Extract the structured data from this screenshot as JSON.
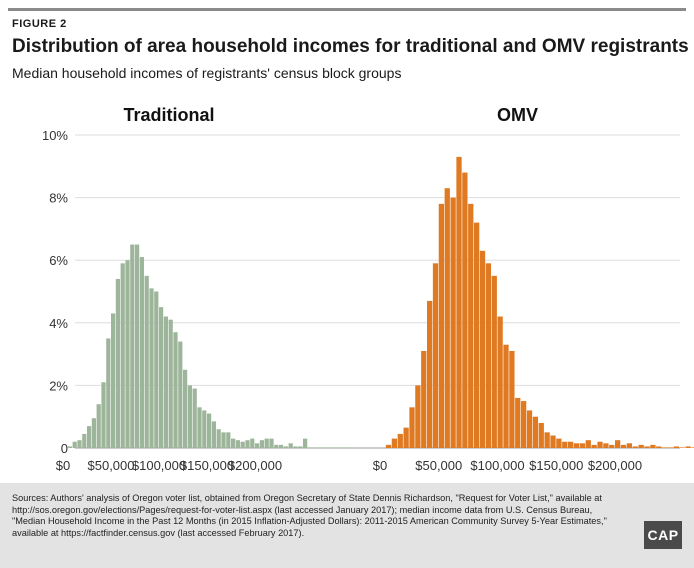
{
  "header": {
    "figure_label": "FIGURE 2",
    "title": "Distribution of area household incomes for traditional and OMV registrants",
    "subtitle": "Median household incomes of registrants' census block groups"
  },
  "footer": {
    "sources": "Sources: Authors' analysis of Oregon voter list, obtained from Oregon Secretary of State Dennis Richardson, \"Request for Voter List,\" available at http://sos.oregon.gov/elections/Pages/request-for-voter-list.aspx (last accessed January 2017); median income data from U.S. Census Bureau, \"Median Household Income in the Past 12 Months (in 2015 Inflation-Adjusted Dollars): 2011-2015 American Community Survey 5-Year Estimates,\" available at https://factfinder.census.gov (last accessed February 2017).",
    "logo": "CAP"
  },
  "chart_data": {
    "type": "bar",
    "xlim": [
      0,
      220000
    ],
    "ylim": [
      0,
      10
    ],
    "y_ticks": [
      "0",
      "2%",
      "4%",
      "6%",
      "8%",
      "10%"
    ],
    "x_ticks": [
      "$0",
      "$50,000",
      "$100,000",
      "$150,000",
      "$200,000"
    ],
    "x_tick_values": [
      0,
      50000,
      100000,
      150000,
      200000
    ],
    "bin_width": 5000,
    "grid": true,
    "panels": [
      {
        "name": "Traditional",
        "color": "#9db59b",
        "bin_start": 5000,
        "values": [
          0.05,
          0.2,
          0.25,
          0.45,
          0.7,
          0.95,
          1.4,
          2.1,
          3.5,
          4.3,
          5.4,
          5.9,
          6.0,
          6.5,
          6.5,
          6.1,
          5.5,
          5.1,
          5.0,
          4.5,
          4.2,
          4.1,
          3.7,
          3.4,
          2.5,
          2.0,
          1.9,
          1.3,
          1.2,
          1.1,
          0.85,
          0.6,
          0.5,
          0.5,
          0.3,
          0.25,
          0.2,
          0.25,
          0.3,
          0.15,
          0.25,
          0.3,
          0.3,
          0.1,
          0.1,
          0.05,
          0.15,
          0.05,
          0.05,
          0.3,
          0.02,
          0.02,
          0.02,
          0.02,
          0.02,
          0.02,
          0.02,
          0.02,
          0.02,
          0.02
        ]
      },
      {
        "name": "OMV",
        "color": "#e07a22",
        "bin_start": 5000,
        "values": [
          0.1,
          0.3,
          0.45,
          0.65,
          1.3,
          2.0,
          3.1,
          4.7,
          5.9,
          7.8,
          8.3,
          8.0,
          9.3,
          8.8,
          7.8,
          7.2,
          6.3,
          5.9,
          5.5,
          4.2,
          3.3,
          3.1,
          1.6,
          1.5,
          1.2,
          1.0,
          0.8,
          0.5,
          0.4,
          0.3,
          0.2,
          0.2,
          0.15,
          0.15,
          0.25,
          0.1,
          0.2,
          0.15,
          0.1,
          0.25,
          0.1,
          0.15,
          0.05,
          0.1,
          0.05,
          0.1,
          0.05,
          0.02,
          0.02,
          0.05,
          0.02,
          0.05,
          0.02,
          0.02,
          0.02,
          0.02,
          0.05,
          0.02,
          0.02,
          0.02
        ]
      }
    ]
  }
}
